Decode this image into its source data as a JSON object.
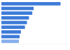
{
  "chart_data": {
    "type": "bar",
    "orientation": "horizontal",
    "categories": [
      null,
      null,
      null,
      null,
      null,
      null,
      null,
      null,
      null
    ],
    "values": [
      88,
      48,
      46,
      41,
      38,
      35,
      29,
      27,
      26
    ],
    "colors": [
      "#3d7bd9",
      "#3d7bd9",
      "#3d7bd9",
      "#3d7bd9",
      "#3d7bd9",
      "#3d7bd9",
      "#3d7bd9",
      "#3d7bd9",
      "#86b0ec"
    ],
    "xlim": [
      0,
      100
    ],
    "tick_labels": false,
    "grid": false
  }
}
